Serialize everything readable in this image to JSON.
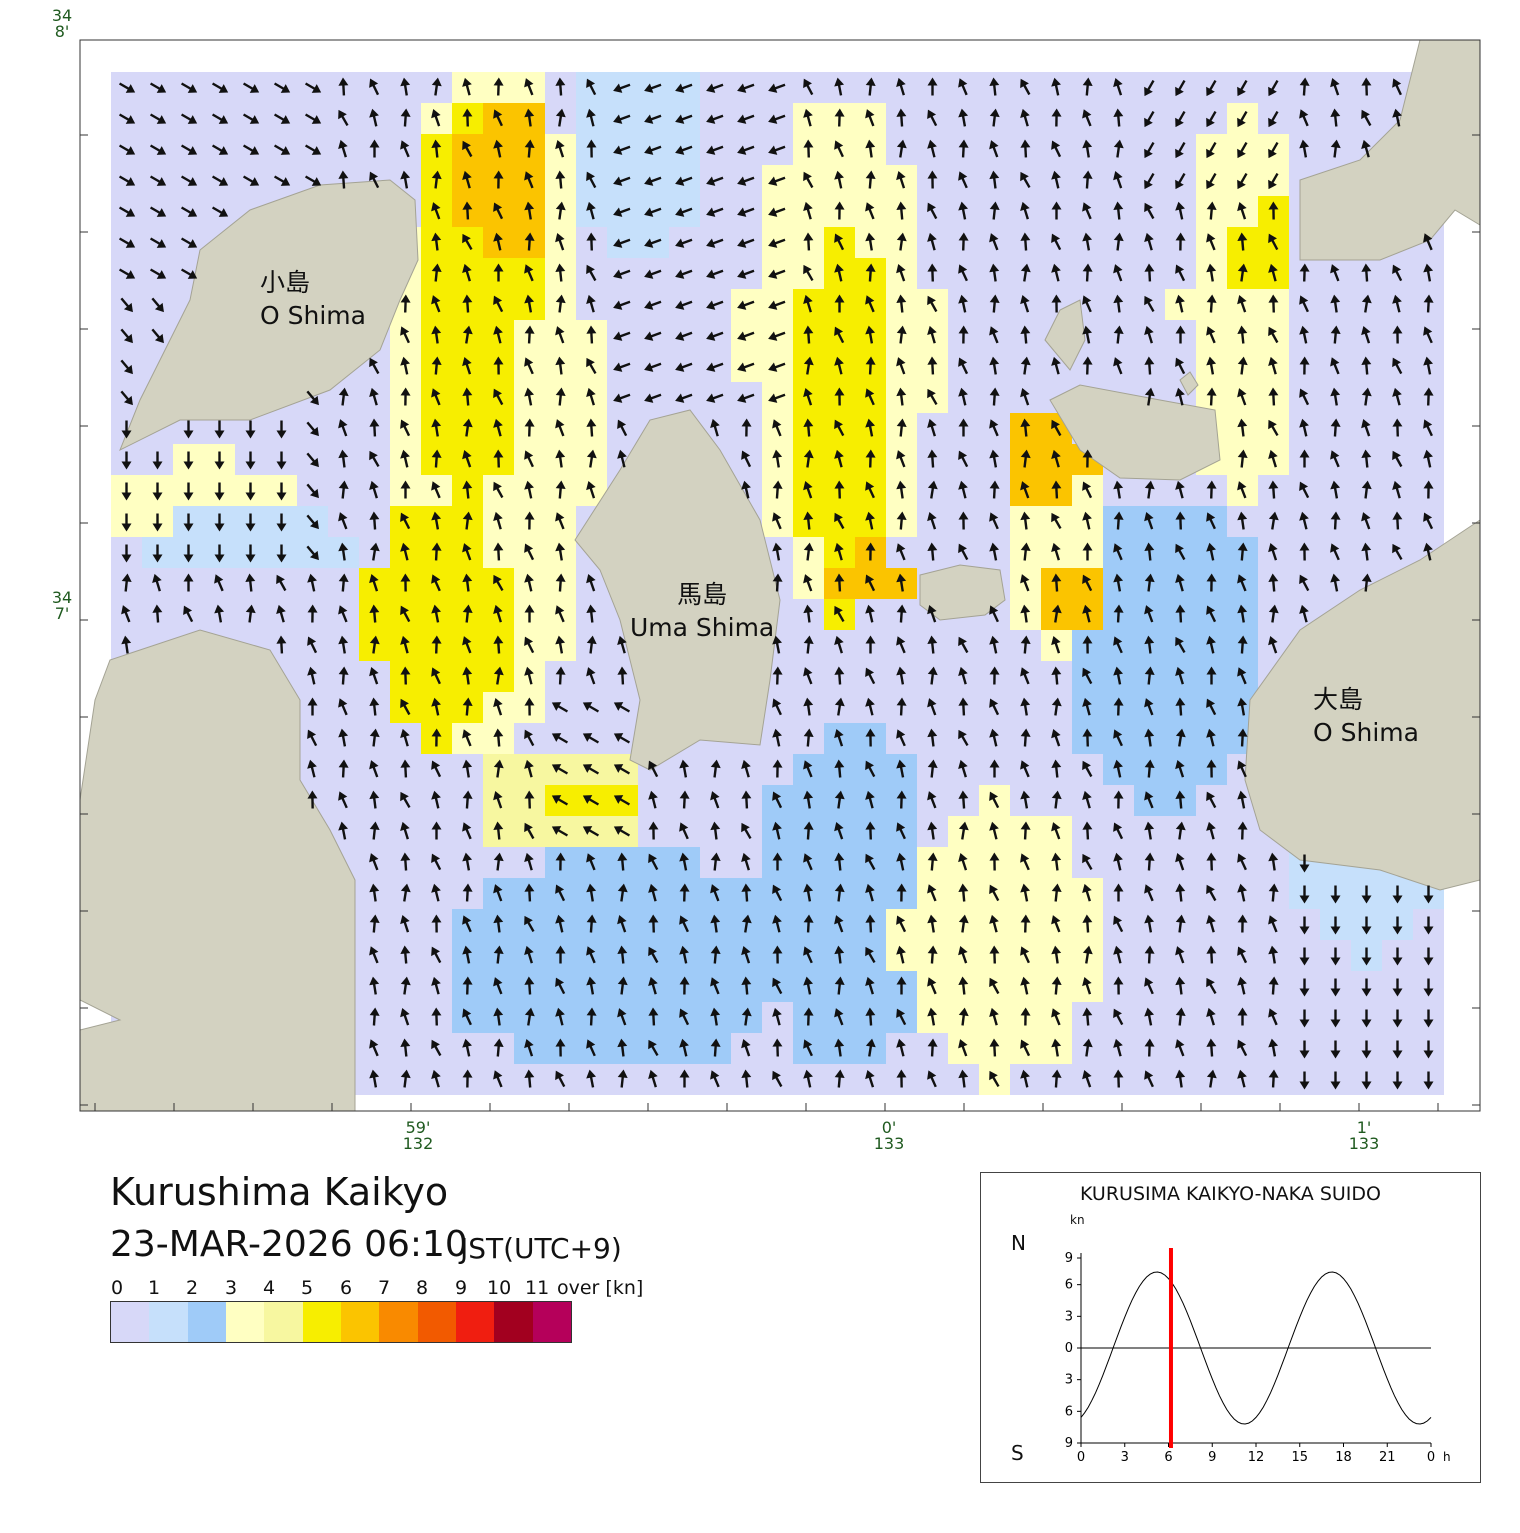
{
  "map": {
    "lat_labels": [
      {
        "deg": "34",
        "min": "8'"
      },
      {
        "deg": "34",
        "min": "7'"
      }
    ],
    "lon_labels": [
      {
        "min": "59'",
        "deg": "132"
      },
      {
        "min": "0'",
        "deg": "133"
      },
      {
        "min": "1'",
        "deg": "133"
      }
    ],
    "islands": [
      {
        "jp": "小島",
        "en": "O Shima"
      },
      {
        "jp": "馬島",
        "en": "Uma Shima"
      },
      {
        "jp": "大島",
        "en": "O Shima"
      }
    ],
    "colors": {
      "land": "#d3d2c1",
      "water_0_1": "#d7d8f8",
      "water_1_2": "#c6e0fb",
      "water_2_3": "#9fcbf8",
      "water_3_4": "#ffffc2",
      "water_4_5": "#f7f7a0",
      "water_5_6": "#f7ee00",
      "water_6_7": "#fbc400",
      "arrow": "#111111"
    }
  },
  "header": {
    "location": "Kurushima Kaikyo",
    "datetime": "23-MAR-2026 06:10",
    "timezone": "JST(UTC+9)"
  },
  "legend": {
    "labels": [
      "0",
      "1",
      "2",
      "3",
      "4",
      "5",
      "6",
      "7",
      "8",
      "9",
      "10",
      "11",
      "over [kn]"
    ],
    "colors": [
      "#d7d8f8",
      "#c6e0fb",
      "#9fcbf8",
      "#ffffc2",
      "#f7f7a0",
      "#f7ee00",
      "#fbc400",
      "#f98a00",
      "#f25a00",
      "#f01e10",
      "#a2001f",
      "#b5005a"
    ]
  },
  "tide_chart": {
    "title": "KURUSIMA KAIKYO-NAKA SUIDO",
    "unit": "kn",
    "north_label": "N",
    "south_label": "S",
    "y_ticks": [
      "9",
      "6",
      "3",
      "0",
      "3",
      "6",
      "9"
    ],
    "x_ticks": [
      "0",
      "3",
      "6",
      "9",
      "12",
      "15",
      "18",
      "21",
      "0"
    ],
    "x_unit": "h",
    "current_hour": 6.17,
    "curve_color": "#000000",
    "marker_color": "#ff0000"
  }
}
